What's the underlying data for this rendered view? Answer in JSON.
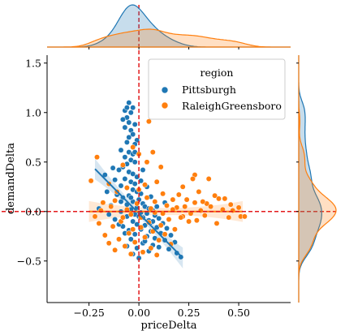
{
  "chart_data": {
    "type": "scatter",
    "xlabel": "priceDelta",
    "ylabel": "demandDelta",
    "xlim": [
      -0.46,
      0.76
    ],
    "ylim": [
      -0.92,
      1.58
    ],
    "xticks": [
      -0.25,
      0.0,
      0.25,
      0.5
    ],
    "xtick_labels": [
      "−0.25",
      "0.00",
      "0.25",
      "0.50"
    ],
    "yticks": [
      -0.5,
      0.0,
      0.5,
      1.0,
      1.5
    ],
    "ytick_labels": [
      "−0.5",
      "0.0",
      "0.5",
      "1.0",
      "1.5"
    ],
    "grid": false,
    "reference_lines": {
      "x": 0.0,
      "y": 0.0,
      "color": "#e31a1c",
      "style": "dashed"
    },
    "legend": {
      "title": "region",
      "placement": "top-right"
    },
    "marginals": {
      "top": "kde",
      "right": "kde"
    },
    "series": [
      {
        "name": "Pittsburgh",
        "color": "#1f77b4",
        "regression": {
          "x": [
            -0.22,
            0.22
          ],
          "y": [
            0.43,
            -0.47
          ]
        },
        "points": [
          [
            -0.07,
            1.02
          ],
          [
            -0.06,
            1.05
          ],
          [
            -0.05,
            1.1
          ],
          [
            -0.03,
            1.05
          ],
          [
            -0.04,
            1.0
          ],
          [
            -0.06,
            0.95
          ],
          [
            -0.08,
            0.93
          ],
          [
            -0.05,
            0.9
          ],
          [
            -0.02,
            0.88
          ],
          [
            -0.07,
            0.85
          ],
          [
            -0.04,
            0.82
          ],
          [
            -0.03,
            0.78
          ],
          [
            -0.05,
            0.75
          ],
          [
            -0.01,
            0.72
          ],
          [
            -0.06,
            0.7
          ],
          [
            -0.02,
            0.68
          ],
          [
            -0.09,
            0.62
          ],
          [
            -0.05,
            0.6
          ],
          [
            -0.03,
            0.58
          ],
          [
            -0.07,
            0.55
          ],
          [
            -0.04,
            0.52
          ],
          [
            -0.02,
            0.5
          ],
          [
            -0.06,
            0.48
          ],
          [
            -0.08,
            0.45
          ],
          [
            -0.1,
            0.42
          ],
          [
            -0.05,
            0.4
          ],
          [
            -0.03,
            0.38
          ],
          [
            -0.01,
            0.35
          ],
          [
            -0.07,
            0.33
          ],
          [
            -0.12,
            0.32
          ],
          [
            -0.04,
            0.3
          ],
          [
            -0.02,
            0.28
          ],
          [
            -0.09,
            0.26
          ],
          [
            -0.06,
            0.24
          ],
          [
            -0.03,
            0.22
          ],
          [
            -0.01,
            0.2
          ],
          [
            0.01,
            0.18
          ],
          [
            -0.11,
            0.17
          ],
          [
            -0.05,
            0.16
          ],
          [
            -0.08,
            0.14
          ],
          [
            0.0,
            0.12
          ],
          [
            -0.03,
            0.1
          ],
          [
            0.02,
            0.08
          ],
          [
            -0.06,
            0.07
          ],
          [
            -0.14,
            0.06
          ],
          [
            0.03,
            0.05
          ],
          [
            -0.01,
            0.04
          ],
          [
            0.05,
            0.03
          ],
          [
            -0.04,
            0.02
          ],
          [
            0.07,
            0.01
          ],
          [
            -0.09,
            0.0
          ],
          [
            0.01,
            -0.01
          ],
          [
            0.04,
            -0.02
          ],
          [
            -0.02,
            -0.03
          ],
          [
            0.08,
            -0.04
          ],
          [
            -0.06,
            -0.05
          ],
          [
            0.02,
            -0.06
          ],
          [
            0.1,
            -0.07
          ],
          [
            -0.12,
            -0.08
          ],
          [
            0.05,
            -0.09
          ],
          [
            -0.03,
            -0.1
          ],
          [
            0.06,
            -0.11
          ],
          [
            0.12,
            -0.12
          ],
          [
            -0.01,
            -0.13
          ],
          [
            0.03,
            -0.14
          ],
          [
            -0.08,
            -0.15
          ],
          [
            0.09,
            -0.16
          ],
          [
            0.14,
            -0.17
          ],
          [
            0.01,
            -0.18
          ],
          [
            -0.05,
            -0.19
          ],
          [
            0.06,
            -0.2
          ],
          [
            0.11,
            -0.22
          ],
          [
            -0.02,
            -0.23
          ],
          [
            0.16,
            -0.24
          ],
          [
            0.04,
            -0.25
          ],
          [
            0.08,
            -0.27
          ],
          [
            -0.04,
            -0.28
          ],
          [
            0.13,
            -0.29
          ],
          [
            0.18,
            -0.31
          ],
          [
            0.02,
            -0.32
          ],
          [
            0.07,
            -0.34
          ],
          [
            0.1,
            -0.36
          ],
          [
            -0.01,
            -0.37
          ],
          [
            0.15,
            -0.38
          ],
          [
            0.05,
            -0.4
          ],
          [
            0.19,
            -0.42
          ],
          [
            -0.03,
            -0.43
          ],
          [
            0.21,
            -0.46
          ],
          [
            0.0,
            -0.47
          ],
          [
            -0.17,
            0.37
          ],
          [
            -0.18,
            0.09
          ],
          [
            -0.15,
            -0.03
          ],
          [
            -0.2,
            0.03
          ],
          [
            -0.16,
            0.2
          ],
          [
            -0.13,
            0.44
          ],
          [
            0.13,
            0.09
          ],
          [
            0.02,
            0.42
          ],
          [
            0.01,
            0.31
          ],
          [
            -0.04,
            0.14
          ],
          [
            0.03,
            -0.3
          ],
          [
            -0.07,
            -0.22
          ],
          [
            0.09,
            0.05
          ],
          [
            -0.1,
            -0.13
          ],
          [
            0.06,
            0.15
          ],
          [
            -0.02,
            0.6
          ],
          [
            0.0,
            -0.05
          ],
          [
            0.04,
            0.25
          ],
          [
            -0.06,
            -0.35
          ],
          [
            0.07,
            -0.1
          ],
          [
            -0.09,
            0.1
          ]
        ]
      },
      {
        "name": "RaleighGreensboro",
        "color": "#ff7f0e",
        "regression": {
          "x": [
            -0.25,
            0.52
          ],
          "y": [
            0.0,
            0.0
          ]
        },
        "points": [
          [
            0.05,
            0.91
          ],
          [
            0.0,
            0.58
          ],
          [
            -0.03,
            0.65
          ],
          [
            0.07,
            0.6
          ],
          [
            -0.21,
            0.55
          ],
          [
            0.04,
            0.5
          ],
          [
            -0.08,
            0.47
          ],
          [
            0.11,
            0.45
          ],
          [
            0.28,
            0.37
          ],
          [
            0.35,
            0.33
          ],
          [
            0.27,
            0.33
          ],
          [
            -0.24,
            0.31
          ],
          [
            0.09,
            0.3
          ],
          [
            -0.15,
            0.28
          ],
          [
            0.03,
            0.27
          ],
          [
            0.22,
            0.25
          ],
          [
            -0.06,
            0.24
          ],
          [
            0.3,
            0.2
          ],
          [
            0.12,
            0.18
          ],
          [
            0.38,
            0.16
          ],
          [
            0.4,
            0.13
          ],
          [
            0.43,
            0.13
          ],
          [
            0.24,
            0.12
          ],
          [
            0.17,
            0.12
          ],
          [
            -0.12,
            0.11
          ],
          [
            0.28,
            0.09
          ],
          [
            0.34,
            0.08
          ],
          [
            0.46,
            0.07
          ],
          [
            0.36,
            0.05
          ],
          [
            0.19,
            0.04
          ],
          [
            0.42,
            0.02
          ],
          [
            0.5,
            0.04
          ],
          [
            0.31,
            0.01
          ],
          [
            -0.19,
            0.01
          ],
          [
            0.08,
            -0.01
          ],
          [
            0.26,
            -0.02
          ],
          [
            -0.04,
            -0.03
          ],
          [
            0.33,
            -0.04
          ],
          [
            0.51,
            -0.05
          ],
          [
            0.45,
            -0.06
          ],
          [
            0.22,
            -0.05
          ],
          [
            0.15,
            -0.08
          ],
          [
            -0.09,
            -0.1
          ],
          [
            0.05,
            -0.11
          ],
          [
            0.29,
            -0.09
          ],
          [
            0.39,
            -0.12
          ],
          [
            0.11,
            -0.14
          ],
          [
            -0.13,
            -0.15
          ],
          [
            -0.2,
            -0.12
          ],
          [
            0.01,
            -0.16
          ],
          [
            0.07,
            -0.2
          ],
          [
            -0.05,
            -0.22
          ],
          [
            0.13,
            -0.23
          ],
          [
            -0.17,
            -0.24
          ],
          [
            0.03,
            -0.26
          ],
          [
            -0.1,
            -0.28
          ],
          [
            0.1,
            -0.29
          ],
          [
            -0.02,
            -0.31
          ],
          [
            0.16,
            -0.33
          ],
          [
            -0.07,
            -0.35
          ],
          [
            0.06,
            -0.37
          ],
          [
            -0.12,
            -0.39
          ],
          [
            0.02,
            -0.41
          ],
          [
            -0.04,
            -0.43
          ],
          [
            0.09,
            -0.44
          ],
          [
            -0.15,
            -0.32
          ],
          [
            0.18,
            -0.18
          ],
          [
            0.21,
            -0.06
          ],
          [
            -0.22,
            -0.05
          ],
          [
            0.14,
            0.06
          ],
          [
            -0.01,
            0.08
          ],
          [
            0.04,
            0.14
          ],
          [
            -0.14,
            0.05
          ],
          [
            0.47,
            0.01
          ],
          [
            0.53,
            -0.05
          ],
          [
            0.2,
            0.17
          ],
          [
            -0.11,
            0.2
          ],
          [
            0.0,
            0.22
          ],
          [
            0.08,
            0.1
          ],
          [
            -0.18,
            0.09
          ],
          [
            0.01,
            -0.06
          ],
          [
            0.25,
            -0.1
          ],
          [
            -0.06,
            0.02
          ],
          [
            0.12,
            -0.02
          ],
          [
            -0.03,
            -0.18
          ],
          [
            0.17,
            0.02
          ],
          [
            0.23,
            0.05
          ],
          [
            -0.08,
            -0.06
          ],
          [
            0.06,
            0.03
          ],
          [
            0.32,
            0.1
          ]
        ]
      }
    ]
  }
}
